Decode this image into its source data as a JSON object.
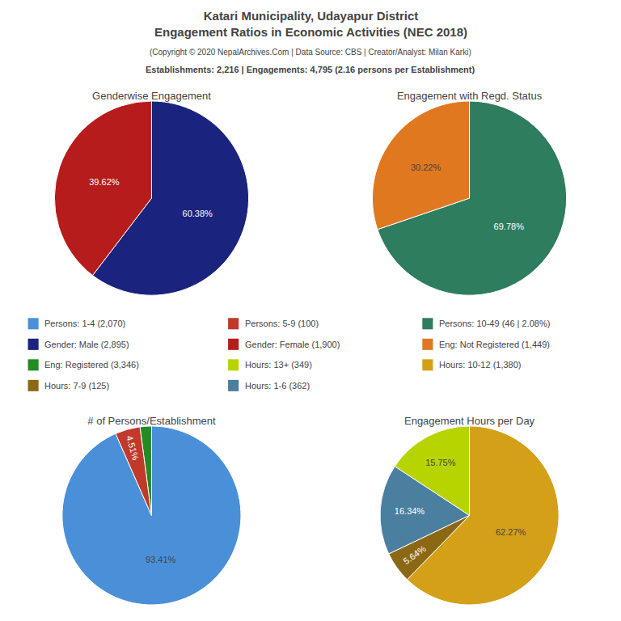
{
  "title": "Katari Municipality, Udayapur District\nEngagement Ratios in Economic Activities (NEC 2018)",
  "subtitle": "(Copyright © 2020 NepalArchives.Com | Data Source: CBS | Creator/Analyst: Milan Karki)",
  "annotations": [
    "Establishments: 2,216 | Engagements: 4,795 (2.16 persons per Establishment)"
  ],
  "legend_entries": [
    {
      "name": "Persons: 1-4 (2,070)",
      "color": "#4a90d9"
    },
    {
      "name": "Persons: 5-9 (100)",
      "color": "#c0392b"
    },
    {
      "name": "Persons: 10-49 (46 | 2.08%)",
      "color": "#2e7d5e"
    },
    {
      "name": "Gender: Male (2,895)",
      "color": "#1a237e"
    },
    {
      "name": "Gender: Female (1,900)",
      "color": "#b71c1c"
    },
    {
      "name": "Eng: Not Registered (1,449)",
      "color": "#e07820"
    },
    {
      "name": "Eng: Registered (3,346)",
      "color": "#228B22"
    },
    {
      "name": "Hours: 13+ (349)",
      "color": "#b8d400"
    },
    {
      "name": "Hours: 10-12 (1,380)",
      "color": "#d4a017"
    },
    {
      "name": "Hours: 7-9 (125)",
      "color": "#8B6914"
    },
    {
      "name": "Hours: 1-6 (362)",
      "color": "#4a7fa0"
    }
  ],
  "chart_data": [
    {
      "type": "pie",
      "title": "Genderwise Engagement",
      "values": [
        60.38,
        39.62
      ],
      "value_labels": [
        "60.38%",
        "39.62%"
      ],
      "colors": [
        "#1a237e",
        "#b71c1c"
      ],
      "data_labels": true
    },
    {
      "type": "pie",
      "title": "Engagement with Regd. Status",
      "values": [
        69.78,
        30.22
      ],
      "value_labels": [
        "69.78%",
        "30.22%"
      ],
      "colors": [
        "#2e7d5e",
        "#e07820"
      ],
      "data_labels": true
    },
    {
      "type": "pie",
      "title": "# of Persons/Establishment",
      "values": [
        93.41,
        2.08,
        4.51
      ],
      "value_labels": [
        "93.41%",
        null,
        "4.51%"
      ],
      "colors": [
        "#4a90d9",
        "#228B22",
        "#c0392b"
      ],
      "data_labels": true
    },
    {
      "type": "pie",
      "title": "Engagement Hours per Day",
      "values": [
        62.27,
        15.75,
        16.34,
        5.64
      ],
      "value_labels": [
        "62.27%",
        "15.75%",
        "16.34%",
        "5.64%"
      ],
      "colors": [
        "#d4a017",
        "#b8d400",
        "#4a7fa0",
        "#8B6914"
      ],
      "data_labels": true
    }
  ]
}
